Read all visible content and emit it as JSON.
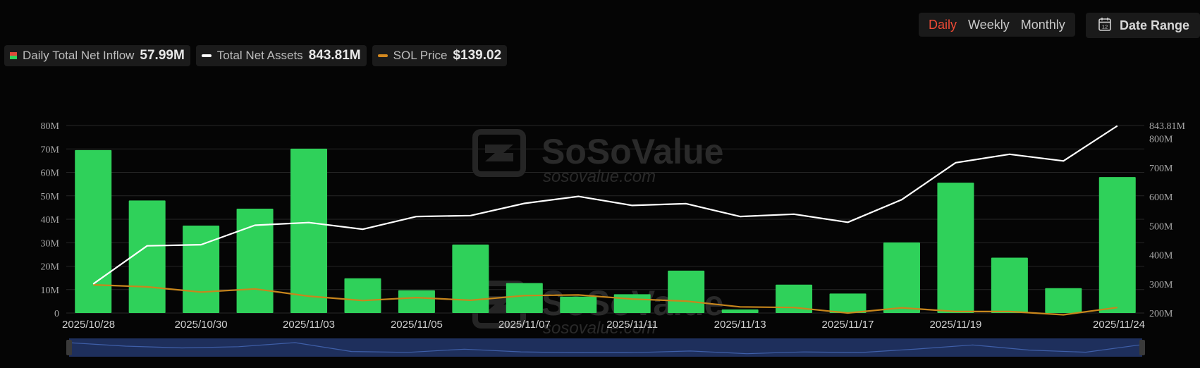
{
  "controls": {
    "periods": [
      "Daily",
      "Weekly",
      "Monthly"
    ],
    "active_period": "Daily",
    "date_range_label": "Date Range"
  },
  "legend": [
    {
      "label": "Daily Total Net Inflow",
      "value": "57.99M",
      "icon": "bar-swatch-icon"
    },
    {
      "label": "Total Net Assets",
      "value": "843.81M",
      "icon": "white-line-icon",
      "color": "#ffffff"
    },
    {
      "label": "SOL Price",
      "value": "$139.02",
      "icon": "orange-line-icon",
      "color": "#d4891f"
    }
  ],
  "watermark": {
    "brand": "SoSoValue",
    "site": "sosovalue.com"
  },
  "colors": {
    "bar": "#2fd15a",
    "assets_line": "#ffffff",
    "price_line": "#c8861c",
    "grid": "#262626",
    "navigator": "#1e2f5c"
  },
  "chart_data": {
    "type": "bar",
    "categories": [
      "2025/10/28",
      "2025/10/29",
      "2025/10/30",
      "2025/10/31",
      "2025/11/03",
      "2025/11/04",
      "2025/11/05",
      "2025/11/06",
      "2025/11/07",
      "2025/11/10",
      "2025/11/11",
      "2025/11/12",
      "2025/11/13",
      "2025/11/14",
      "2025/11/17",
      "2025/11/18",
      "2025/11/19",
      "2025/11/20",
      "2025/11/21",
      "2025/11/24"
    ],
    "x_tick_labels": [
      "2025/10/28",
      "2025/10/30",
      "2025/11/03",
      "2025/11/05",
      "2025/11/07",
      "2025/11/11",
      "2025/11/13",
      "2025/11/17",
      "2025/11/19",
      "2025/11/24"
    ],
    "x_tick_indices": [
      0,
      2,
      4,
      6,
      8,
      10,
      12,
      14,
      16,
      19
    ],
    "series": [
      {
        "name": "Daily Total Net Inflow",
        "type": "bar",
        "axis": "left",
        "values": [
          69.5,
          48.0,
          37.3,
          44.5,
          70.1,
          14.8,
          9.7,
          29.2,
          12.8,
          7.0,
          8.0,
          18.1,
          1.5,
          12.1,
          8.3,
          30.1,
          55.6,
          23.6,
          10.6,
          57.99
        ]
      },
      {
        "name": "Total Net Assets",
        "type": "line",
        "axis": "right",
        "values": [
          300,
          431,
          435,
          502,
          511,
          488,
          532,
          535,
          577,
          601,
          570,
          576,
          532,
          540,
          512,
          590,
          717,
          746,
          723,
          843.81
        ]
      },
      {
        "name": "SOL Price",
        "type": "line",
        "axis": "right",
        "values": [
          297,
          290,
          272,
          283,
          258,
          243,
          253,
          244,
          260,
          262,
          248,
          241,
          221,
          219,
          200,
          218,
          205,
          205,
          194,
          219
        ]
      }
    ],
    "left_axis": {
      "ticks": [
        "0",
        "10M",
        "20M",
        "30M",
        "40M",
        "50M",
        "60M",
        "70M",
        "80M"
      ],
      "ylim": [
        0,
        80
      ]
    },
    "right_axis": {
      "ticks": [
        "200M",
        "300M",
        "400M",
        "500M",
        "600M",
        "700M",
        "800M"
      ],
      "ylim": [
        200,
        845
      ],
      "last_label": "843.81M"
    },
    "grid": true
  }
}
